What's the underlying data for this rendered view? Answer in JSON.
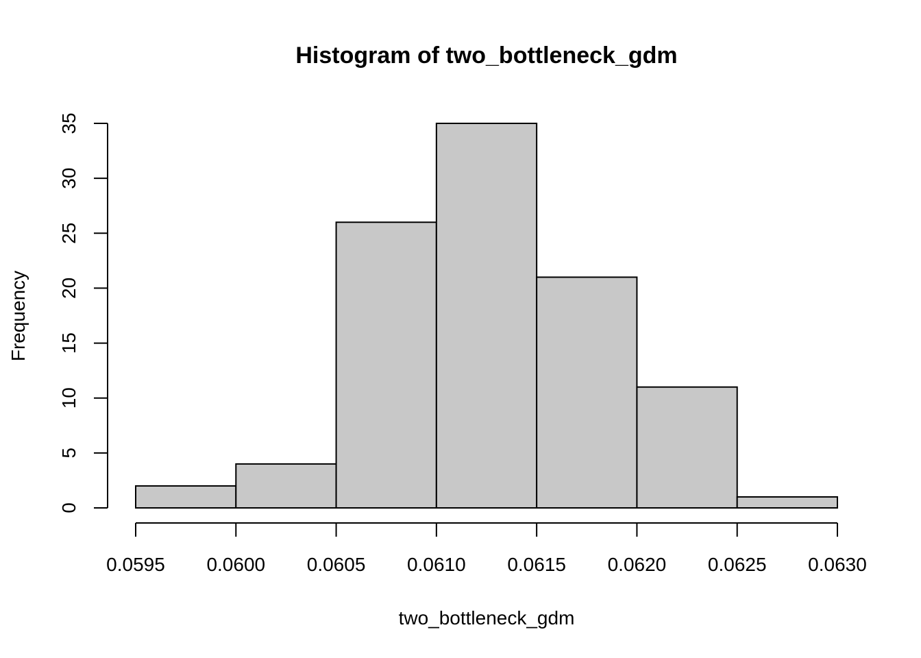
{
  "chart_data": {
    "type": "bar",
    "title": "Histogram of two_bottleneck_gdm",
    "xlabel": "two_bottleneck_gdm",
    "ylabel": "Frequency",
    "bins": [
      {
        "x0": 0.0595,
        "x1": 0.06,
        "count": 2
      },
      {
        "x0": 0.06,
        "x1": 0.0605,
        "count": 4
      },
      {
        "x0": 0.0605,
        "x1": 0.061,
        "count": 26
      },
      {
        "x0": 0.061,
        "x1": 0.0615,
        "count": 35
      },
      {
        "x0": 0.0615,
        "x1": 0.062,
        "count": 21
      },
      {
        "x0": 0.062,
        "x1": 0.0625,
        "count": 11
      },
      {
        "x0": 0.0625,
        "x1": 0.063,
        "count": 1
      }
    ],
    "xticks": [
      "0.0595",
      "0.0600",
      "0.0605",
      "0.0610",
      "0.0615",
      "0.0620",
      "0.0625",
      "0.0630"
    ],
    "yticks": [
      "0",
      "5",
      "10",
      "15",
      "20",
      "25",
      "30",
      "35"
    ],
    "xlim": [
      0.0595,
      0.063
    ],
    "ylim": [
      0,
      35
    ],
    "grid": false,
    "legend": "none",
    "colors": {
      "bar_fill": "#c8c8c8",
      "bar_stroke": "#000000"
    }
  }
}
